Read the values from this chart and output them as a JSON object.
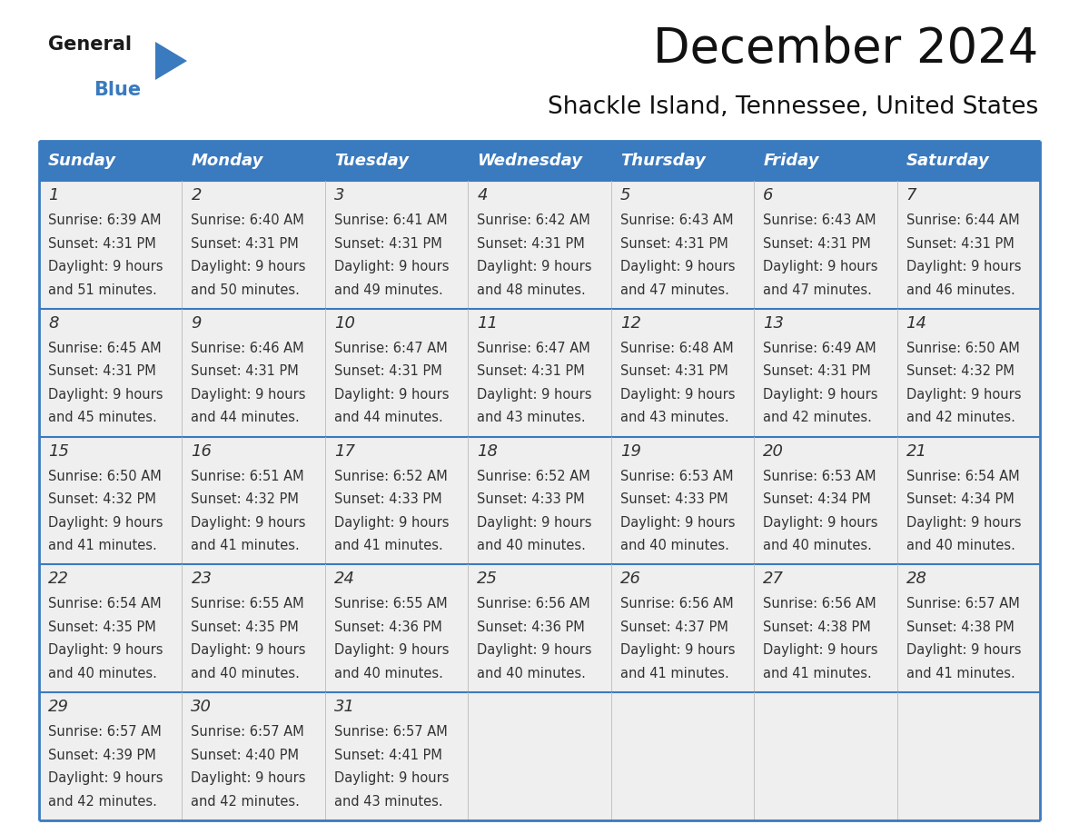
{
  "title": "December 2024",
  "subtitle": "Shackle Island, Tennessee, United States",
  "header_color": "#3a7abf",
  "header_text_color": "#ffffff",
  "cell_bg_color": "#efefef",
  "border_color": "#3a7abf",
  "grid_line_color": "#3a7abf",
  "text_color": "#333333",
  "days_of_week": [
    "Sunday",
    "Monday",
    "Tuesday",
    "Wednesday",
    "Thursday",
    "Friday",
    "Saturday"
  ],
  "calendar_data": [
    [
      {
        "day": "1",
        "sunrise": "6:39 AM",
        "sunset": "4:31 PM",
        "daylight_h": "9 hours",
        "daylight_m": "and 51 minutes."
      },
      {
        "day": "2",
        "sunrise": "6:40 AM",
        "sunset": "4:31 PM",
        "daylight_h": "9 hours",
        "daylight_m": "and 50 minutes."
      },
      {
        "day": "3",
        "sunrise": "6:41 AM",
        "sunset": "4:31 PM",
        "daylight_h": "9 hours",
        "daylight_m": "and 49 minutes."
      },
      {
        "day": "4",
        "sunrise": "6:42 AM",
        "sunset": "4:31 PM",
        "daylight_h": "9 hours",
        "daylight_m": "and 48 minutes."
      },
      {
        "day": "5",
        "sunrise": "6:43 AM",
        "sunset": "4:31 PM",
        "daylight_h": "9 hours",
        "daylight_m": "and 47 minutes."
      },
      {
        "day": "6",
        "sunrise": "6:43 AM",
        "sunset": "4:31 PM",
        "daylight_h": "9 hours",
        "daylight_m": "and 47 minutes."
      },
      {
        "day": "7",
        "sunrise": "6:44 AM",
        "sunset": "4:31 PM",
        "daylight_h": "9 hours",
        "daylight_m": "and 46 minutes."
      }
    ],
    [
      {
        "day": "8",
        "sunrise": "6:45 AM",
        "sunset": "4:31 PM",
        "daylight_h": "9 hours",
        "daylight_m": "and 45 minutes."
      },
      {
        "day": "9",
        "sunrise": "6:46 AM",
        "sunset": "4:31 PM",
        "daylight_h": "9 hours",
        "daylight_m": "and 44 minutes."
      },
      {
        "day": "10",
        "sunrise": "6:47 AM",
        "sunset": "4:31 PM",
        "daylight_h": "9 hours",
        "daylight_m": "and 44 minutes."
      },
      {
        "day": "11",
        "sunrise": "6:47 AM",
        "sunset": "4:31 PM",
        "daylight_h": "9 hours",
        "daylight_m": "and 43 minutes."
      },
      {
        "day": "12",
        "sunrise": "6:48 AM",
        "sunset": "4:31 PM",
        "daylight_h": "9 hours",
        "daylight_m": "and 43 minutes."
      },
      {
        "day": "13",
        "sunrise": "6:49 AM",
        "sunset": "4:31 PM",
        "daylight_h": "9 hours",
        "daylight_m": "and 42 minutes."
      },
      {
        "day": "14",
        "sunrise": "6:50 AM",
        "sunset": "4:32 PM",
        "daylight_h": "9 hours",
        "daylight_m": "and 42 minutes."
      }
    ],
    [
      {
        "day": "15",
        "sunrise": "6:50 AM",
        "sunset": "4:32 PM",
        "daylight_h": "9 hours",
        "daylight_m": "and 41 minutes."
      },
      {
        "day": "16",
        "sunrise": "6:51 AM",
        "sunset": "4:32 PM",
        "daylight_h": "9 hours",
        "daylight_m": "and 41 minutes."
      },
      {
        "day": "17",
        "sunrise": "6:52 AM",
        "sunset": "4:33 PM",
        "daylight_h": "9 hours",
        "daylight_m": "and 41 minutes."
      },
      {
        "day": "18",
        "sunrise": "6:52 AM",
        "sunset": "4:33 PM",
        "daylight_h": "9 hours",
        "daylight_m": "and 40 minutes."
      },
      {
        "day": "19",
        "sunrise": "6:53 AM",
        "sunset": "4:33 PM",
        "daylight_h": "9 hours",
        "daylight_m": "and 40 minutes."
      },
      {
        "day": "20",
        "sunrise": "6:53 AM",
        "sunset": "4:34 PM",
        "daylight_h": "9 hours",
        "daylight_m": "and 40 minutes."
      },
      {
        "day": "21",
        "sunrise": "6:54 AM",
        "sunset": "4:34 PM",
        "daylight_h": "9 hours",
        "daylight_m": "and 40 minutes."
      }
    ],
    [
      {
        "day": "22",
        "sunrise": "6:54 AM",
        "sunset": "4:35 PM",
        "daylight_h": "9 hours",
        "daylight_m": "and 40 minutes."
      },
      {
        "day": "23",
        "sunrise": "6:55 AM",
        "sunset": "4:35 PM",
        "daylight_h": "9 hours",
        "daylight_m": "and 40 minutes."
      },
      {
        "day": "24",
        "sunrise": "6:55 AM",
        "sunset": "4:36 PM",
        "daylight_h": "9 hours",
        "daylight_m": "and 40 minutes."
      },
      {
        "day": "25",
        "sunrise": "6:56 AM",
        "sunset": "4:36 PM",
        "daylight_h": "9 hours",
        "daylight_m": "and 40 minutes."
      },
      {
        "day": "26",
        "sunrise": "6:56 AM",
        "sunset": "4:37 PM",
        "daylight_h": "9 hours",
        "daylight_m": "and 41 minutes."
      },
      {
        "day": "27",
        "sunrise": "6:56 AM",
        "sunset": "4:38 PM",
        "daylight_h": "9 hours",
        "daylight_m": "and 41 minutes."
      },
      {
        "day": "28",
        "sunrise": "6:57 AM",
        "sunset": "4:38 PM",
        "daylight_h": "9 hours",
        "daylight_m": "and 41 minutes."
      }
    ],
    [
      {
        "day": "29",
        "sunrise": "6:57 AM",
        "sunset": "4:39 PM",
        "daylight_h": "9 hours",
        "daylight_m": "and 42 minutes."
      },
      {
        "day": "30",
        "sunrise": "6:57 AM",
        "sunset": "4:40 PM",
        "daylight_h": "9 hours",
        "daylight_m": "and 42 minutes."
      },
      {
        "day": "31",
        "sunrise": "6:57 AM",
        "sunset": "4:41 PM",
        "daylight_h": "9 hours",
        "daylight_m": "and 43 minutes."
      },
      null,
      null,
      null,
      null
    ]
  ],
  "logo_color_general": "#1a1a1a",
  "logo_color_blue": "#3a7abf",
  "title_fontsize": 38,
  "subtitle_fontsize": 19,
  "header_fontsize": 13,
  "day_number_fontsize": 13,
  "cell_text_fontsize": 10.5
}
